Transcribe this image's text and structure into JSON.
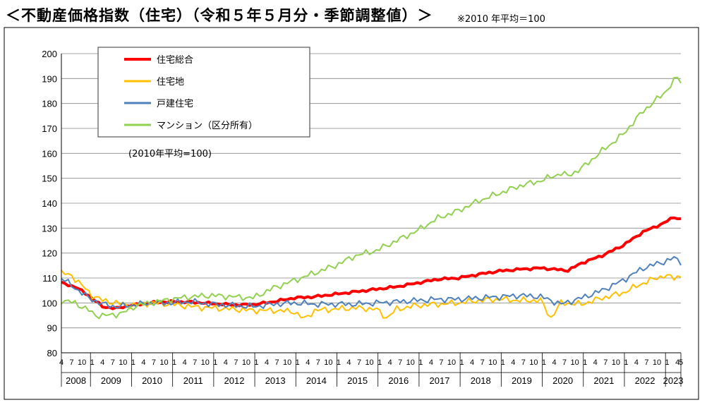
{
  "title": "＜不動産価格指数（住宅）（令和５年５月分・季節調整値）＞",
  "note": "※2010 年平均＝100",
  "chart_data": {
    "type": "line",
    "base_note": "(2010年平均=100)",
    "ylim": [
      80,
      200
    ],
    "y_ticks": [
      "80",
      "90",
      "100",
      "110",
      "120",
      "130",
      "140",
      "150",
      "160",
      "170",
      "180",
      "190",
      "200"
    ],
    "grid": true,
    "legend_position": "top-left",
    "month_tick_labels": [
      "1",
      "4",
      "7",
      "10"
    ],
    "first_period": "2008-04",
    "last_period": "2023-05",
    "years": [
      "2008",
      "2009",
      "2010",
      "2011",
      "2012",
      "2013",
      "2014",
      "2015",
      "2016",
      "2017",
      "2018",
      "2019",
      "2020",
      "2021",
      "2022",
      "2023"
    ],
    "series": [
      {
        "name": "住宅総合",
        "color": "#ff0000",
        "width": 4,
        "anchors": [
          [
            "2008-04",
            108
          ],
          [
            "2008-08",
            106.5
          ],
          [
            "2008-12",
            103
          ],
          [
            "2009-04",
            98.5
          ],
          [
            "2009-08",
            97.8
          ],
          [
            "2009-12",
            99
          ],
          [
            "2010-06",
            100
          ],
          [
            "2010-12",
            100.5
          ],
          [
            "2011-06",
            100.3
          ],
          [
            "2011-12",
            99.8
          ],
          [
            "2012-06",
            99.2
          ],
          [
            "2012-12",
            99.3
          ],
          [
            "2013-06",
            100.5
          ],
          [
            "2013-12",
            102
          ],
          [
            "2014-06",
            102.5
          ],
          [
            "2014-12",
            103.5
          ],
          [
            "2015-06",
            104.5
          ],
          [
            "2015-12",
            105.5
          ],
          [
            "2016-06",
            106.5
          ],
          [
            "2016-12",
            108
          ],
          [
            "2017-06",
            109.5
          ],
          [
            "2017-12",
            110
          ],
          [
            "2018-06",
            111.5
          ],
          [
            "2018-12",
            112.8
          ],
          [
            "2019-06",
            113.5
          ],
          [
            "2019-12",
            114
          ],
          [
            "2020-04",
            113.5
          ],
          [
            "2020-08",
            113
          ],
          [
            "2020-12",
            116
          ],
          [
            "2021-06",
            119
          ],
          [
            "2021-12",
            123
          ],
          [
            "2022-06",
            128.5
          ],
          [
            "2022-12",
            132
          ],
          [
            "2023-03",
            134.5
          ],
          [
            "2023-05",
            133.5
          ]
        ]
      },
      {
        "name": "住宅地",
        "color": "#ffc000",
        "width": 2,
        "anchors": [
          [
            "2008-04",
            112
          ],
          [
            "2008-07",
            111
          ],
          [
            "2008-10",
            107
          ],
          [
            "2009-01",
            103
          ],
          [
            "2009-04",
            101
          ],
          [
            "2009-08",
            100
          ],
          [
            "2009-12",
            99
          ],
          [
            "2010-06",
            100
          ],
          [
            "2010-12",
            99.5
          ],
          [
            "2011-06",
            98.5
          ],
          [
            "2011-12",
            98
          ],
          [
            "2012-06",
            97.5
          ],
          [
            "2012-12",
            97
          ],
          [
            "2013-06",
            97
          ],
          [
            "2013-12",
            96.5
          ],
          [
            "2014-03",
            93.5
          ],
          [
            "2014-06",
            97
          ],
          [
            "2014-12",
            97.5
          ],
          [
            "2015-06",
            98
          ],
          [
            "2015-12",
            97.5
          ],
          [
            "2016-03",
            94
          ],
          [
            "2016-06",
            97.5
          ],
          [
            "2016-12",
            99
          ],
          [
            "2017-06",
            99.5
          ],
          [
            "2017-12",
            100
          ],
          [
            "2018-06",
            101
          ],
          [
            "2018-12",
            101.5
          ],
          [
            "2019-06",
            101
          ],
          [
            "2019-12",
            101
          ],
          [
            "2020-03",
            94
          ],
          [
            "2020-06",
            100
          ],
          [
            "2020-12",
            99.5
          ],
          [
            "2021-06",
            102
          ],
          [
            "2021-12",
            104
          ],
          [
            "2022-06",
            108
          ],
          [
            "2022-12",
            111
          ],
          [
            "2023-03",
            110
          ],
          [
            "2023-05",
            111
          ]
        ]
      },
      {
        "name": "戸建住宅",
        "color": "#4f81bd",
        "width": 2,
        "anchors": [
          [
            "2008-04",
            110
          ],
          [
            "2008-08",
            106
          ],
          [
            "2008-12",
            102
          ],
          [
            "2009-04",
            99.5
          ],
          [
            "2009-08",
            98.5
          ],
          [
            "2009-12",
            99
          ],
          [
            "2010-06",
            100
          ],
          [
            "2010-12",
            100
          ],
          [
            "2011-06",
            100.5
          ],
          [
            "2011-12",
            99.5
          ],
          [
            "2012-06",
            99
          ],
          [
            "2012-12",
            98.5
          ],
          [
            "2013-06",
            99.5
          ],
          [
            "2013-12",
            100
          ],
          [
            "2014-06",
            99.5
          ],
          [
            "2014-12",
            99.5
          ],
          [
            "2015-06",
            99.5
          ],
          [
            "2015-12",
            100
          ],
          [
            "2016-06",
            100.5
          ],
          [
            "2016-12",
            101
          ],
          [
            "2017-06",
            101.5
          ],
          [
            "2017-12",
            101.5
          ],
          [
            "2018-06",
            102
          ],
          [
            "2018-12",
            102.5
          ],
          [
            "2019-06",
            103
          ],
          [
            "2019-12",
            102.5
          ],
          [
            "2020-06",
            99.5
          ],
          [
            "2020-12",
            102
          ],
          [
            "2021-06",
            105
          ],
          [
            "2021-12",
            109
          ],
          [
            "2022-06",
            114
          ],
          [
            "2022-12",
            116.5
          ],
          [
            "2023-03",
            118
          ],
          [
            "2023-05",
            116.5
          ]
        ]
      },
      {
        "name": "マンション（区分所有）",
        "color": "#92d050",
        "width": 2,
        "anchors": [
          [
            "2008-04",
            101
          ],
          [
            "2008-08",
            100
          ],
          [
            "2008-12",
            97
          ],
          [
            "2009-02",
            95
          ],
          [
            "2009-06",
            95
          ],
          [
            "2009-10",
            96
          ],
          [
            "2010-02",
            99
          ],
          [
            "2010-06",
            100
          ],
          [
            "2010-12",
            101.5
          ],
          [
            "2011-06",
            102.5
          ],
          [
            "2011-12",
            103
          ],
          [
            "2012-06",
            102.5
          ],
          [
            "2012-12",
            102
          ],
          [
            "2013-06",
            106
          ],
          [
            "2013-12",
            109
          ],
          [
            "2014-06",
            112
          ],
          [
            "2014-12",
            115
          ],
          [
            "2015-06",
            119
          ],
          [
            "2015-12",
            121
          ],
          [
            "2016-06",
            125
          ],
          [
            "2016-12",
            129
          ],
          [
            "2017-06",
            134
          ],
          [
            "2017-12",
            137
          ],
          [
            "2018-06",
            141
          ],
          [
            "2018-12",
            144
          ],
          [
            "2019-06",
            147
          ],
          [
            "2019-12",
            149
          ],
          [
            "2020-06",
            152
          ],
          [
            "2020-08",
            151
          ],
          [
            "2020-12",
            154
          ],
          [
            "2021-06",
            161
          ],
          [
            "2021-12",
            167.5
          ],
          [
            "2022-06",
            177
          ],
          [
            "2022-12",
            184
          ],
          [
            "2023-03",
            189
          ],
          [
            "2023-04",
            190.5
          ],
          [
            "2023-05",
            188.5
          ]
        ]
      }
    ]
  }
}
